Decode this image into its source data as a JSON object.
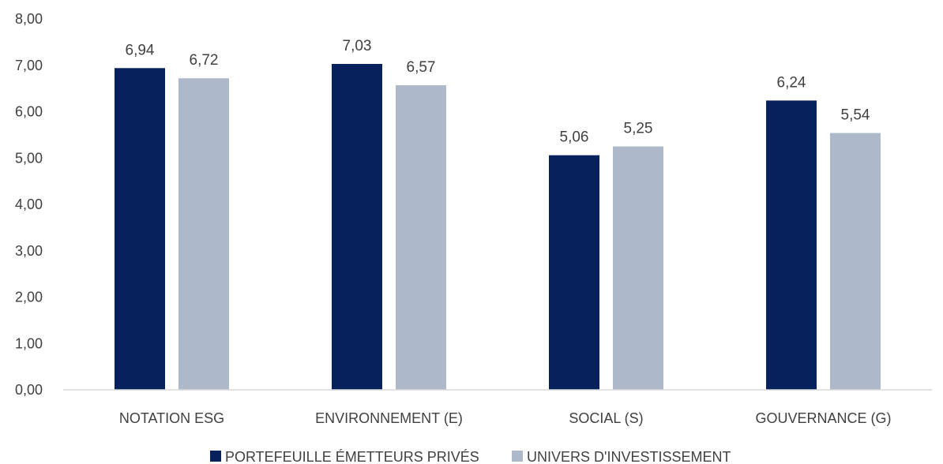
{
  "chart_data": {
    "type": "bar",
    "categories": [
      "NOTATION ESG",
      "ENVIRONNEMENT (E)",
      "SOCIAL (S)",
      "GOUVERNANCE (G)"
    ],
    "series": [
      {
        "name": "PORTEFEUILLE ÉMETTEURS PRIVÉS",
        "color": "#06215B",
        "values": [
          6.94,
          7.03,
          5.06,
          6.24
        ],
        "labels": [
          "6,94",
          "7,03",
          "5,06",
          "6,24"
        ]
      },
      {
        "name": "UNIVERS D'INVESTISSEMENT",
        "color": "#ADB9CA",
        "values": [
          6.72,
          6.57,
          5.25,
          5.54
        ],
        "labels": [
          "6,72",
          "6,57",
          "5,25",
          "5,54"
        ]
      }
    ],
    "ylim": [
      0,
      8
    ],
    "yticks": [
      0,
      1,
      2,
      3,
      4,
      5,
      6,
      7,
      8
    ],
    "ytick_labels": [
      "0,00",
      "1,00",
      "2,00",
      "3,00",
      "4,00",
      "5,00",
      "6,00",
      "7,00",
      "8,00"
    ],
    "title": "",
    "xlabel": "",
    "ylabel": "",
    "grid": false,
    "legend": "bottom",
    "axis_color": "#D9D9D9"
  }
}
